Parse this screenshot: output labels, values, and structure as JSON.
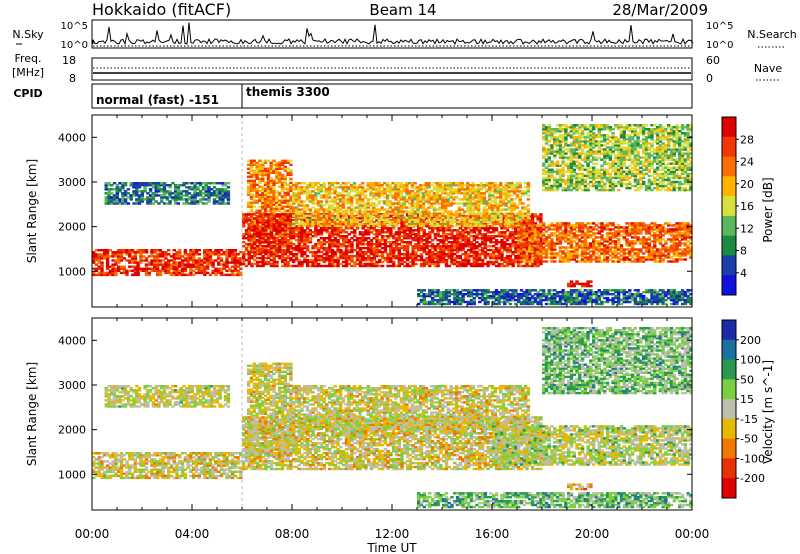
{
  "header": {
    "station": "Hokkaido (fitACF)",
    "beam": "Beam 14",
    "date": "28/Mar/2009"
  },
  "panels": {
    "nsky": {
      "left_label": "N.Sky",
      "right_label": "N.Search",
      "left_ticks": [
        "10^5",
        "10^0"
      ],
      "right_ticks": [
        "10^5",
        "10^0"
      ]
    },
    "freq": {
      "left_label_1": "Freq.",
      "left_label_2": "[MHz]",
      "left_ticks": [
        "18",
        "8"
      ],
      "right_label": "Nave",
      "right_ticks": [
        "60",
        "0"
      ]
    },
    "cpid": {
      "label": "CPID",
      "modes": [
        "normal (fast) -151",
        "themis 3300"
      ]
    }
  },
  "chart_data": [
    {
      "type": "heatmap",
      "parameter": "Power",
      "ylabel": "Slant Range [km]",
      "xlabel": "Time UT",
      "ylim": [
        200,
        4500
      ],
      "yticks": [
        "1000",
        "2000",
        "3000",
        "4000"
      ],
      "colorbar_label": "Power [dB]",
      "colorbar_ticks": [
        "28",
        "24",
        "20",
        "16",
        "12",
        "8",
        "4"
      ],
      "colorbar_colors": [
        "#e00000",
        "#f03800",
        "#fa7000",
        "#ffb400",
        "#d8e040",
        "#5cb85c",
        "#1a8c40",
        "#1a3fa8",
        "#1010e0"
      ],
      "grid": false
    },
    {
      "type": "heatmap",
      "parameter": "Velocity",
      "ylabel": "Slant Range [km]",
      "xlabel": "Time UT",
      "ylim": [
        200,
        4500
      ],
      "yticks": [
        "1000",
        "2000",
        "3000",
        "4000"
      ],
      "colorbar_label": "Velocity [m s^-1]",
      "colorbar_ticks": [
        "200",
        "100",
        "50",
        "15",
        "-15",
        "-50",
        "-100",
        "-200"
      ],
      "colorbar_colors": [
        "#1a2aa8",
        "#1a70a0",
        "#2a9a50",
        "#7ad040",
        "#bdbdb0",
        "#e8b800",
        "#f07800",
        "#e83000",
        "#e00000"
      ],
      "grid": false
    }
  ],
  "xaxis": {
    "ticks": [
      "00:00",
      "04:00",
      "08:00",
      "12:00",
      "16:00",
      "20:00",
      "00:00"
    ],
    "label": "Time UT"
  },
  "scatter_bands": {
    "power": [
      {
        "t0": 0.0,
        "t1": 6.0,
        "r0": 900,
        "r1": 1500,
        "level": 0.85
      },
      {
        "t0": 0.5,
        "t1": 5.5,
        "r0": 2500,
        "r1": 3000,
        "level": 0.25
      },
      {
        "t0": 6.2,
        "t1": 8.0,
        "r0": 1400,
        "r1": 3500,
        "level": 0.7
      },
      {
        "t0": 6.0,
        "t1": 18.0,
        "r0": 1100,
        "r1": 2300,
        "level": 0.9
      },
      {
        "t0": 8.0,
        "t1": 17.5,
        "r0": 2000,
        "r1": 3000,
        "level": 0.6
      },
      {
        "t0": 17.0,
        "t1": 24.0,
        "r0": 1200,
        "r1": 2100,
        "level": 0.75
      },
      {
        "t0": 18.0,
        "t1": 24.0,
        "r0": 2800,
        "r1": 4300,
        "level": 0.45
      },
      {
        "t0": 13.0,
        "t1": 24.0,
        "r0": 250,
        "r1": 600,
        "level": 0.2
      },
      {
        "t0": 19.0,
        "t1": 20.0,
        "r0": 650,
        "r1": 800,
        "level": 0.95
      }
    ],
    "velocity": [
      {
        "t0": 0.0,
        "t1": 6.0,
        "r0": 900,
        "r1": 1500,
        "level": 0.45
      },
      {
        "t0": 0.5,
        "t1": 5.5,
        "r0": 2500,
        "r1": 3000,
        "level": 0.5
      },
      {
        "t0": 6.2,
        "t1": 8.0,
        "r0": 1400,
        "r1": 3500,
        "level": 0.48
      },
      {
        "t0": 6.0,
        "t1": 18.0,
        "r0": 1100,
        "r1": 2300,
        "level": 0.46
      },
      {
        "t0": 8.0,
        "t1": 17.5,
        "r0": 2000,
        "r1": 3000,
        "level": 0.47
      },
      {
        "t0": 16.0,
        "t1": 24.0,
        "r0": 1200,
        "r1": 2100,
        "level": 0.52
      },
      {
        "t0": 18.0,
        "t1": 24.0,
        "r0": 2800,
        "r1": 4300,
        "level": 0.62
      },
      {
        "t0": 13.0,
        "t1": 24.0,
        "r0": 250,
        "r1": 600,
        "level": 0.65
      },
      {
        "t0": 19.0,
        "t1": 20.0,
        "r0": 650,
        "r1": 800,
        "level": 0.38
      }
    ]
  }
}
